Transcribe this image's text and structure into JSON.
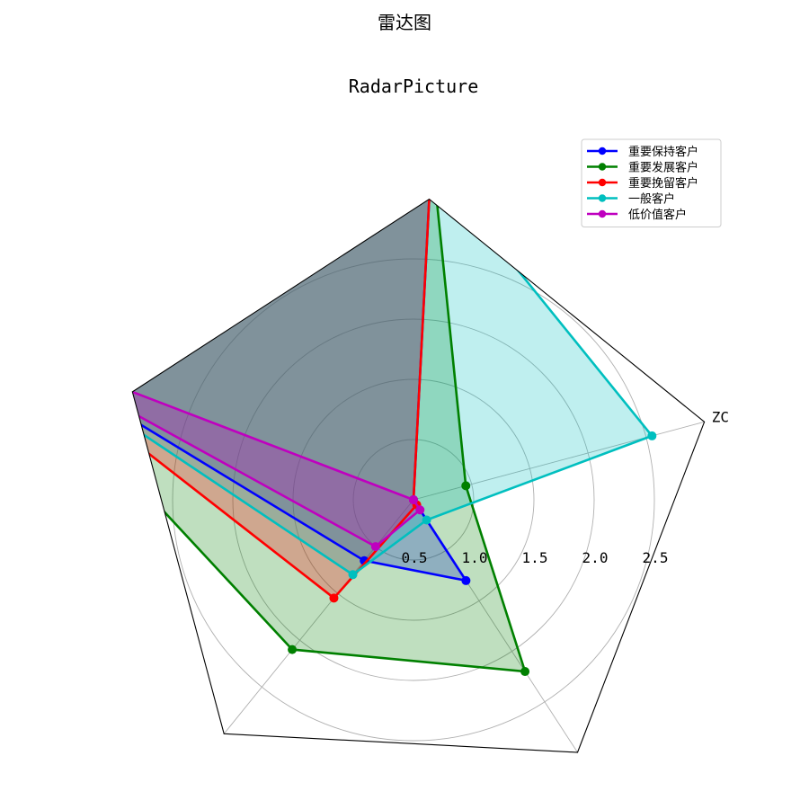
{
  "suptitle": "雷达图",
  "chart_data": {
    "type": "radar",
    "title": "RadarPicture",
    "axes": [
      "ZC",
      "",
      "",
      "",
      ""
    ],
    "rlim": [
      0,
      2.5
    ],
    "rticks": [
      0.5,
      1.0,
      1.5,
      2.0,
      2.5
    ],
    "rtick_labels": [
      "0.5",
      "1.0",
      "1.5",
      "2.0",
      "2.5"
    ],
    "grid": true,
    "legend_position": "upper-right",
    "series": [
      {
        "name": "重要保持客户",
        "color": "#0000ff",
        "values": [
          0.0,
          2.85,
          3.6,
          0.65,
          0.8
        ]
      },
      {
        "name": "重要发展客户",
        "color": "#008000",
        "values": [
          0.45,
          2.9,
          3.6,
          1.6,
          1.7
        ]
      },
      {
        "name": "重要挽留客户",
        "color": "#ff0000",
        "values": [
          0.0,
          3.0,
          3.6,
          1.05,
          0.05
        ]
      },
      {
        "name": "一般客户",
        "color": "#00bfbf",
        "values": [
          2.05,
          2.8,
          3.6,
          0.8,
          0.2
        ]
      },
      {
        "name": "低价值客户",
        "color": "#bf00bf",
        "values": [
          0.0,
          0.0,
          3.6,
          0.5,
          0.1
        ]
      }
    ]
  }
}
